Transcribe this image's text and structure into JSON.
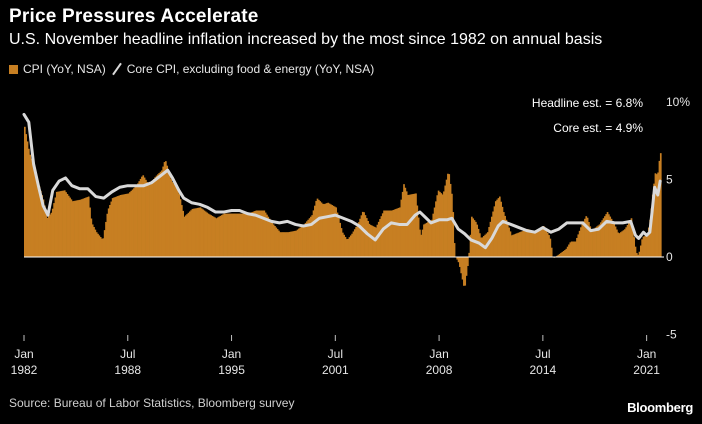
{
  "title": "Price Pressures Accelerate",
  "subtitle": "U.S. November headline inflation increased by the most since 1982 on annual basis",
  "legend": {
    "cpi_label": "CPI (YoY, NSA)",
    "core_label": "Core CPI, excluding food & energy (YoY, NSA)"
  },
  "source": "Source: Bureau of Labor Statistics, Bloomberg survey",
  "brand": "Bloomberg",
  "colors": {
    "cpi": "#c77f22",
    "core": "#d9d9d9",
    "background": "#000000",
    "zero_line": "#ffffff"
  },
  "chart_data": {
    "type": "bar",
    "title": "Price Pressures Accelerate",
    "xlabel": "",
    "ylabel": "%",
    "ylim": [
      -5,
      10
    ],
    "xlim": [
      1982.0,
      2021.9
    ],
    "y_ticks": [
      {
        "value": 10,
        "label": "10%"
      },
      {
        "value": 5,
        "label": "5"
      },
      {
        "value": 0,
        "label": "0"
      },
      {
        "value": -5,
        "label": "-5"
      }
    ],
    "x_ticks": [
      {
        "year": 1982,
        "line1": "Jan",
        "line2": "1982"
      },
      {
        "year": 1988.5,
        "line1": "Jul",
        "line2": "1988"
      },
      {
        "year": 1995,
        "line1": "Jan",
        "line2": "1995"
      },
      {
        "year": 2001.5,
        "line1": "Jul",
        "line2": "2001"
      },
      {
        "year": 2008,
        "line1": "Jan",
        "line2": "2008"
      },
      {
        "year": 2014.5,
        "line1": "Jul",
        "line2": "2014"
      },
      {
        "year": 2021,
        "line1": "Jan",
        "line2": "2021"
      }
    ],
    "annotations": [
      {
        "label": "Headline est. = 6.8%"
      },
      {
        "label": "Core est. = 4.9%"
      }
    ],
    "series": [
      {
        "name": "CPI (YoY, NSA)",
        "kind": "bar",
        "points": [
          [
            1982.0,
            8.4
          ],
          [
            1982.3,
            6.7
          ],
          [
            1982.6,
            5.8
          ],
          [
            1982.9,
            4.6
          ],
          [
            1983.2,
            3.6
          ],
          [
            1983.4,
            2.5
          ],
          [
            1983.7,
            2.9
          ],
          [
            1984.0,
            4.2
          ],
          [
            1984.5,
            4.3
          ],
          [
            1985.0,
            3.6
          ],
          [
            1985.5,
            3.7
          ],
          [
            1986.0,
            3.9
          ],
          [
            1986.2,
            2.2
          ],
          [
            1986.5,
            1.6
          ],
          [
            1986.9,
            1.1
          ],
          [
            1987.2,
            3.0
          ],
          [
            1987.5,
            3.8
          ],
          [
            1988.0,
            4.0
          ],
          [
            1988.5,
            4.1
          ],
          [
            1989.0,
            4.6
          ],
          [
            1989.4,
            5.3
          ],
          [
            1989.8,
            4.6
          ],
          [
            1990.2,
            5.2
          ],
          [
            1990.6,
            5.6
          ],
          [
            1990.8,
            6.3
          ],
          [
            1991.2,
            4.9
          ],
          [
            1991.6,
            4.4
          ],
          [
            1992.0,
            2.6
          ],
          [
            1992.5,
            3.1
          ],
          [
            1993.0,
            3.2
          ],
          [
            1993.5,
            2.8
          ],
          [
            1994.0,
            2.5
          ],
          [
            1994.5,
            2.8
          ],
          [
            1995.0,
            2.8
          ],
          [
            1995.5,
            2.8
          ],
          [
            1996.0,
            2.8
          ],
          [
            1996.5,
            3.0
          ],
          [
            1997.0,
            3.0
          ],
          [
            1997.5,
            2.2
          ],
          [
            1998.0,
            1.6
          ],
          [
            1998.5,
            1.6
          ],
          [
            1999.0,
            1.7
          ],
          [
            1999.5,
            2.1
          ],
          [
            2000.0,
            2.7
          ],
          [
            2000.3,
            3.8
          ],
          [
            2000.7,
            3.4
          ],
          [
            2001.0,
            3.5
          ],
          [
            2001.5,
            3.2
          ],
          [
            2001.9,
            1.6
          ],
          [
            2002.2,
            1.1
          ],
          [
            2002.5,
            1.5
          ],
          [
            2002.9,
            2.2
          ],
          [
            2003.2,
            3.0
          ],
          [
            2003.6,
            2.1
          ],
          [
            2004.0,
            1.9
          ],
          [
            2004.5,
            3.0
          ],
          [
            2005.0,
            3.0
          ],
          [
            2005.5,
            3.2
          ],
          [
            2005.75,
            4.7
          ],
          [
            2006.0,
            4.0
          ],
          [
            2006.5,
            4.1
          ],
          [
            2006.8,
            1.3
          ],
          [
            2007.0,
            2.1
          ],
          [
            2007.5,
            2.4
          ],
          [
            2007.9,
            4.3
          ],
          [
            2008.2,
            4.0
          ],
          [
            2008.55,
            5.6
          ],
          [
            2008.8,
            3.7
          ],
          [
            2008.95,
            0.1
          ],
          [
            2009.2,
            -0.4
          ],
          [
            2009.55,
            -2.1
          ],
          [
            2009.8,
            -0.2
          ],
          [
            2010.0,
            2.6
          ],
          [
            2010.3,
            2.2
          ],
          [
            2010.6,
            1.2
          ],
          [
            2011.0,
            1.6
          ],
          [
            2011.5,
            3.6
          ],
          [
            2011.75,
            3.9
          ],
          [
            2012.0,
            2.9
          ],
          [
            2012.5,
            1.4
          ],
          [
            2013.0,
            1.6
          ],
          [
            2013.5,
            1.8
          ],
          [
            2014.0,
            1.6
          ],
          [
            2014.5,
            2.0
          ],
          [
            2014.9,
            1.3
          ],
          [
            2015.1,
            -0.1
          ],
          [
            2015.5,
            0.2
          ],
          [
            2015.9,
            0.5
          ],
          [
            2016.2,
            1.0
          ],
          [
            2016.5,
            1.0
          ],
          [
            2016.9,
            2.1
          ],
          [
            2017.2,
            2.7
          ],
          [
            2017.5,
            1.7
          ],
          [
            2018.0,
            2.1
          ],
          [
            2018.5,
            2.9
          ],
          [
            2018.9,
            2.2
          ],
          [
            2019.2,
            1.5
          ],
          [
            2019.6,
            1.8
          ],
          [
            2020.0,
            2.5
          ],
          [
            2020.3,
            0.3
          ],
          [
            2020.45,
            0.1
          ],
          [
            2020.7,
            1.3
          ],
          [
            2021.0,
            1.4
          ],
          [
            2021.2,
            2.6
          ],
          [
            2021.35,
            4.2
          ],
          [
            2021.5,
            5.4
          ],
          [
            2021.65,
            5.3
          ],
          [
            2021.75,
            6.2
          ],
          [
            2021.85,
            6.8
          ]
        ]
      },
      {
        "name": "Core CPI, excluding food & energy (YoY, NSA)",
        "kind": "line",
        "points": [
          [
            1982.0,
            9.2
          ],
          [
            1982.3,
            8.7
          ],
          [
            1982.6,
            6.0
          ],
          [
            1982.9,
            4.6
          ],
          [
            1983.2,
            3.3
          ],
          [
            1983.5,
            2.7
          ],
          [
            1983.8,
            4.3
          ],
          [
            1984.2,
            4.9
          ],
          [
            1984.6,
            5.1
          ],
          [
            1985.0,
            4.6
          ],
          [
            1985.5,
            4.4
          ],
          [
            1986.0,
            4.4
          ],
          [
            1986.5,
            3.9
          ],
          [
            1987.0,
            3.8
          ],
          [
            1987.5,
            4.2
          ],
          [
            1988.0,
            4.5
          ],
          [
            1988.5,
            4.6
          ],
          [
            1989.0,
            4.6
          ],
          [
            1989.5,
            4.6
          ],
          [
            1990.0,
            4.8
          ],
          [
            1990.5,
            5.2
          ],
          [
            1991.0,
            5.6
          ],
          [
            1991.3,
            5.1
          ],
          [
            1991.7,
            4.3
          ],
          [
            1992.0,
            3.8
          ],
          [
            1992.5,
            3.5
          ],
          [
            1993.0,
            3.4
          ],
          [
            1993.5,
            3.2
          ],
          [
            1994.0,
            2.9
          ],
          [
            1994.5,
            2.9
          ],
          [
            1995.0,
            3.0
          ],
          [
            1995.5,
            3.0
          ],
          [
            1996.0,
            2.8
          ],
          [
            1996.5,
            2.7
          ],
          [
            1997.0,
            2.5
          ],
          [
            1997.5,
            2.3
          ],
          [
            1998.0,
            2.2
          ],
          [
            1998.5,
            2.3
          ],
          [
            1999.0,
            2.1
          ],
          [
            1999.5,
            2.0
          ],
          [
            2000.0,
            2.1
          ],
          [
            2000.5,
            2.5
          ],
          [
            2001.0,
            2.6
          ],
          [
            2001.5,
            2.7
          ],
          [
            2002.0,
            2.5
          ],
          [
            2002.5,
            2.3
          ],
          [
            2003.0,
            2.0
          ],
          [
            2003.5,
            1.5
          ],
          [
            2004.0,
            1.1
          ],
          [
            2004.5,
            1.8
          ],
          [
            2005.0,
            2.2
          ],
          [
            2005.5,
            2.1
          ],
          [
            2006.0,
            2.1
          ],
          [
            2006.5,
            2.7
          ],
          [
            2006.8,
            2.9
          ],
          [
            2007.2,
            2.5
          ],
          [
            2007.5,
            2.2
          ],
          [
            2008.0,
            2.4
          ],
          [
            2008.5,
            2.4
          ],
          [
            2008.8,
            2.5
          ],
          [
            2009.2,
            1.8
          ],
          [
            2009.6,
            1.5
          ],
          [
            2010.0,
            1.1
          ],
          [
            2010.5,
            0.9
          ],
          [
            2010.9,
            0.6
          ],
          [
            2011.3,
            1.2
          ],
          [
            2011.7,
            2.0
          ],
          [
            2012.0,
            2.3
          ],
          [
            2012.5,
            2.1
          ],
          [
            2013.0,
            1.9
          ],
          [
            2013.5,
            1.7
          ],
          [
            2014.0,
            1.6
          ],
          [
            2014.5,
            1.9
          ],
          [
            2015.0,
            1.6
          ],
          [
            2015.5,
            1.8
          ],
          [
            2016.0,
            2.2
          ],
          [
            2016.5,
            2.2
          ],
          [
            2017.0,
            2.2
          ],
          [
            2017.5,
            1.7
          ],
          [
            2018.0,
            1.8
          ],
          [
            2018.5,
            2.3
          ],
          [
            2019.0,
            2.2
          ],
          [
            2019.5,
            2.2
          ],
          [
            2020.0,
            2.3
          ],
          [
            2020.3,
            1.4
          ],
          [
            2020.5,
            1.2
          ],
          [
            2020.8,
            1.6
          ],
          [
            2021.0,
            1.4
          ],
          [
            2021.2,
            1.6
          ],
          [
            2021.35,
            3.0
          ],
          [
            2021.5,
            4.5
          ],
          [
            2021.7,
            4.0
          ],
          [
            2021.85,
            4.9
          ]
        ]
      }
    ]
  }
}
